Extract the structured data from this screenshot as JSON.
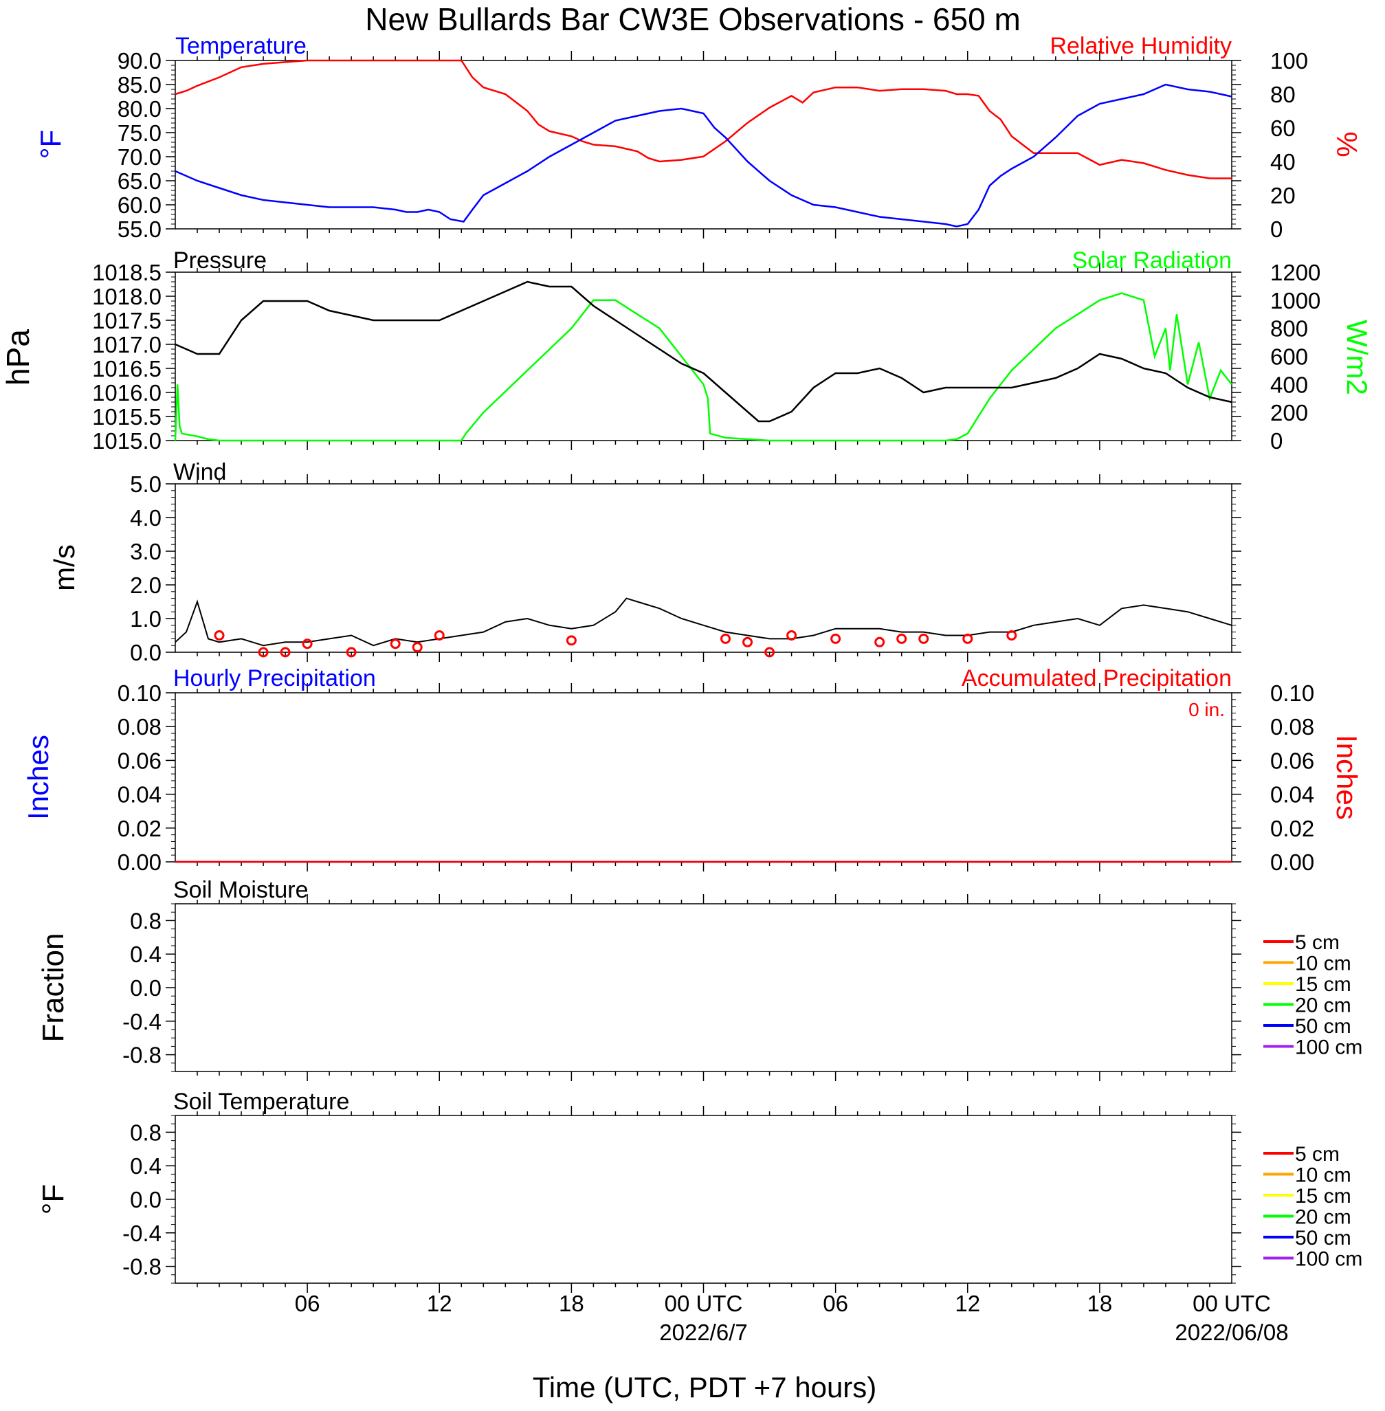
{
  "title": "New Bullards Bar CW3E Observations - 650 m",
  "x_axis": {
    "label": "Time (UTC, PDT +7 hours)",
    "tick_labels": [
      "06",
      "12",
      "18",
      "00 UTC",
      "06",
      "12",
      "18",
      "00 UTC"
    ],
    "date_labels": [
      "2022/6/7",
      "2022/06/08"
    ]
  },
  "colors": {
    "temperature": "#0000ff",
    "humidity": "#ff0000",
    "pressure": "#000000",
    "solar": "#00ff00",
    "wind": "#000000",
    "barb": "#ff0000"
  },
  "chart_data": [
    {
      "panel": "temperature-humidity",
      "type": "line",
      "xlim_hours_utc": [
        0,
        48
      ],
      "left_label": "Temperature",
      "left_unit": "°F",
      "right_label": "Relative Humidity",
      "right_unit": "%",
      "ylim_left": [
        55,
        90
      ],
      "ylim_right": [
        0,
        100
      ],
      "yticks_left": [
        "90.0",
        "85.0",
        "80.0",
        "75.0",
        "70.0",
        "65.0",
        "60.0",
        "55.0"
      ],
      "yticks_right": [
        "100",
        "80",
        "60",
        "40",
        "20",
        "0"
      ],
      "series": [
        {
          "name": "Temperature",
          "axis": "left",
          "color": "#0000ff",
          "x": [
            0,
            0.5,
            1,
            2,
            3,
            4,
            5,
            6,
            7,
            8,
            9,
            10,
            10.5,
            11,
            11.5,
            12,
            12.5,
            13.1,
            13.5,
            14,
            15,
            16,
            17,
            18,
            19,
            20,
            21,
            22,
            23,
            24,
            24.5,
            25,
            26,
            27,
            28,
            29,
            30,
            31,
            32,
            33,
            34,
            35,
            35.5,
            36,
            36.5,
            37,
            37.5,
            38,
            39,
            40,
            41,
            42,
            43,
            44,
            45,
            46,
            47,
            48
          ],
          "y": [
            67,
            66,
            65,
            63.5,
            62,
            61,
            60.5,
            60,
            59.5,
            59.5,
            59.5,
            59,
            58.5,
            58.5,
            59,
            58.5,
            57,
            56.5,
            59,
            62,
            64.5,
            67,
            70,
            72.5,
            75,
            77.5,
            78.5,
            79.5,
            80,
            79,
            76,
            74,
            69,
            65,
            62,
            60,
            59.5,
            58.5,
            57.5,
            57,
            56.5,
            56,
            55.5,
            56,
            59,
            64,
            66,
            67.5,
            70,
            74,
            78.5,
            81,
            82,
            83,
            85,
            84,
            83.5,
            82.5
          ]
        },
        {
          "name": "Relative Humidity",
          "axis": "right",
          "color": "#ff0000",
          "x": [
            0,
            0.5,
            1,
            2,
            3,
            4,
            5,
            6,
            7,
            8,
            9,
            10,
            11,
            12,
            12.5,
            13,
            13.5,
            14,
            15,
            16,
            16.5,
            17,
            18,
            18.5,
            19,
            20,
            21,
            21.5,
            22,
            23,
            24,
            25,
            26,
            27,
            28,
            28.5,
            29,
            30,
            31,
            32,
            33,
            34,
            35,
            35.5,
            36,
            36.5,
            37,
            37.5,
            38,
            38.5,
            39,
            40,
            41,
            42,
            43,
            44,
            45,
            46,
            47,
            48
          ],
          "y": [
            80,
            82,
            85,
            90,
            96,
            98,
            99,
            100,
            100,
            100,
            100,
            100,
            100,
            100,
            100,
            100,
            90,
            84,
            80,
            70,
            62,
            58,
            55,
            52,
            50,
            49,
            46,
            42,
            40,
            41,
            43,
            52,
            63,
            72,
            79,
            75,
            81,
            84,
            84,
            82,
            83,
            83,
            82,
            80,
            80,
            79,
            70,
            65,
            55,
            50,
            45,
            45,
            45,
            38,
            41,
            39,
            35,
            32,
            30,
            30
          ]
        }
      ]
    },
    {
      "panel": "pressure-solar",
      "type": "line",
      "xlim_hours_utc": [
        0,
        48
      ],
      "left_label": "Pressure",
      "left_unit": "hPa",
      "right_label": "Solar Radiation",
      "right_unit": "W/m2",
      "ylim_left": [
        1015.0,
        1018.5
      ],
      "ylim_right": [
        0,
        1200
      ],
      "yticks_left": [
        "1018.5",
        "1018.0",
        "1017.5",
        "1017.0",
        "1016.5",
        "1016.0",
        "1015.5",
        "1015.0"
      ],
      "yticks_right": [
        "1200",
        "1000",
        "800",
        "600",
        "400",
        "200",
        "0"
      ],
      "series": [
        {
          "name": "Pressure",
          "axis": "left",
          "color": "#000000",
          "x": [
            0,
            1,
            2,
            3,
            4,
            5,
            6,
            7,
            8,
            9,
            10,
            11,
            12,
            13,
            14,
            15,
            16,
            17,
            18,
            18.5,
            19,
            20,
            21,
            22,
            23,
            24,
            25,
            26,
            26.5,
            27,
            28,
            29,
            30,
            31,
            32,
            33,
            34,
            35,
            36,
            37,
            38,
            39,
            40,
            41,
            42,
            43,
            44,
            45,
            46,
            47,
            48
          ],
          "y": [
            1017.0,
            1016.8,
            1016.8,
            1017.5,
            1017.9,
            1017.9,
            1017.9,
            1017.7,
            1017.6,
            1017.5,
            1017.5,
            1017.5,
            1017.5,
            1017.7,
            1017.9,
            1018.1,
            1018.3,
            1018.2,
            1018.2,
            1018.0,
            1017.8,
            1017.5,
            1017.2,
            1016.9,
            1016.6,
            1016.4,
            1016.0,
            1015.6,
            1015.4,
            1015.4,
            1015.6,
            1016.1,
            1016.4,
            1016.4,
            1016.5,
            1016.3,
            1016.0,
            1016.1,
            1016.1,
            1016.1,
            1016.1,
            1016.2,
            1016.3,
            1016.5,
            1016.8,
            1016.7,
            1016.5,
            1016.4,
            1016.1,
            1015.9,
            1015.8
          ]
        },
        {
          "name": "Solar Radiation",
          "axis": "right",
          "color": "#00ff00",
          "x": [
            0,
            0.1,
            0.2,
            0.3,
            1,
            1.5,
            2,
            12,
            13,
            13.2,
            14,
            16,
            18,
            19,
            20,
            21,
            22,
            23,
            24,
            24.2,
            24.3,
            25,
            26,
            27,
            30,
            35,
            35.5,
            36,
            37,
            38,
            39,
            40,
            41,
            42,
            43,
            44,
            44.5,
            45,
            45.2,
            45.5,
            46,
            46.5,
            47,
            47.5,
            48
          ],
          "y": [
            0,
            400,
            100,
            50,
            30,
            10,
            0,
            0,
            0,
            50,
            200,
            500,
            800,
            1000,
            1000,
            900,
            800,
            600,
            400,
            300,
            50,
            20,
            10,
            0,
            0,
            0,
            10,
            50,
            300,
            500,
            650,
            800,
            900,
            1000,
            1050,
            1000,
            600,
            800,
            500,
            900,
            400,
            700,
            300,
            500,
            400
          ]
        }
      ]
    },
    {
      "panel": "wind",
      "type": "line",
      "xlim_hours_utc": [
        0,
        48
      ],
      "label": "Wind",
      "unit": "m/s",
      "ylim": [
        0,
        5
      ],
      "yticks": [
        "5.0",
        "4.0",
        "3.0",
        "2.0",
        "1.0",
        "0.0"
      ],
      "series": [
        {
          "name": "Wind",
          "color": "#000000",
          "x": [
            0,
            0.5,
            1,
            1.5,
            2,
            3,
            4,
            5,
            6,
            7,
            8,
            9,
            10,
            11,
            12,
            13,
            14,
            15,
            16,
            17,
            18,
            19,
            20,
            20.5,
            21,
            22,
            23,
            24,
            25,
            26,
            27,
            28,
            29,
            30,
            31,
            32,
            33,
            34,
            35,
            36,
            37,
            38,
            39,
            40,
            41,
            42,
            43,
            44,
            45,
            46,
            47,
            48
          ],
          "y": [
            0.3,
            0.6,
            1.5,
            0.4,
            0.3,
            0.4,
            0.2,
            0.3,
            0.3,
            0.4,
            0.5,
            0.2,
            0.4,
            0.3,
            0.4,
            0.5,
            0.6,
            0.9,
            1.0,
            0.8,
            0.7,
            0.8,
            1.2,
            1.6,
            1.5,
            1.3,
            1.0,
            0.8,
            0.6,
            0.5,
            0.4,
            0.4,
            0.5,
            0.7,
            0.7,
            0.7,
            0.6,
            0.6,
            0.5,
            0.5,
            0.6,
            0.6,
            0.8,
            0.9,
            1.0,
            0.8,
            1.3,
            1.4,
            1.3,
            1.2,
            1.0,
            0.8
          ]
        },
        {
          "name": "Calm markers",
          "color": "#ff0000",
          "x": [
            2,
            4,
            5,
            6,
            8,
            10,
            11,
            12,
            18,
            25,
            26,
            27,
            28,
            30,
            32,
            33,
            34,
            36,
            38
          ],
          "y": [
            0.5,
            0.0,
            0.0,
            0.25,
            0.0,
            0.25,
            0.15,
            0.5,
            0.35,
            0.4,
            0.3,
            0.0,
            0.5,
            0.4,
            0.3,
            0.4,
            0.4,
            0.4,
            0.5
          ]
        }
      ]
    },
    {
      "panel": "precipitation",
      "type": "line",
      "xlim_hours_utc": [
        0,
        48
      ],
      "left_label": "Hourly Precipitation",
      "left_unit": "Inches",
      "right_label": "Accumulated Precipitation",
      "right_unit": "Inches",
      "accumulated_text": "0 in.",
      "ylim": [
        0,
        0.1
      ],
      "yticks": [
        "0.10",
        "0.08",
        "0.06",
        "0.04",
        "0.02",
        "0.00"
      ],
      "series": [
        {
          "name": "Hourly Precipitation",
          "color": "#0000ff",
          "x": [
            0,
            48
          ],
          "y": [
            0,
            0
          ]
        },
        {
          "name": "Accumulated Precipitation",
          "color": "#ff0000",
          "x": [
            0,
            48
          ],
          "y": [
            0,
            0
          ]
        }
      ]
    },
    {
      "panel": "soil-moisture",
      "type": "line",
      "label": "Soil Moisture",
      "unit": "Fraction",
      "ylim": [
        -1,
        1
      ],
      "yticks": [
        "0.8",
        "0.4",
        "0.0",
        "-0.4",
        "-0.8"
      ],
      "legend": [
        {
          "name": "5 cm",
          "color": "#ff0000"
        },
        {
          "name": "10 cm",
          "color": "#ffa500"
        },
        {
          "name": "15 cm",
          "color": "#ffff00"
        },
        {
          "name": "20 cm",
          "color": "#00ff00"
        },
        {
          "name": "50 cm",
          "color": "#0000ff"
        },
        {
          "name": "100 cm",
          "color": "#a020f0"
        }
      ]
    },
    {
      "panel": "soil-temperature",
      "type": "line",
      "label": "Soil Temperature",
      "unit": "°F",
      "ylim": [
        -1,
        1
      ],
      "yticks": [
        "0.8",
        "0.4",
        "0.0",
        "-0.4",
        "-0.8"
      ],
      "legend": [
        {
          "name": "5 cm",
          "color": "#ff0000"
        },
        {
          "name": "10 cm",
          "color": "#ffa500"
        },
        {
          "name": "15 cm",
          "color": "#ffff00"
        },
        {
          "name": "20 cm",
          "color": "#00ff00"
        },
        {
          "name": "50 cm",
          "color": "#0000ff"
        },
        {
          "name": "100 cm",
          "color": "#a020f0"
        }
      ]
    }
  ]
}
